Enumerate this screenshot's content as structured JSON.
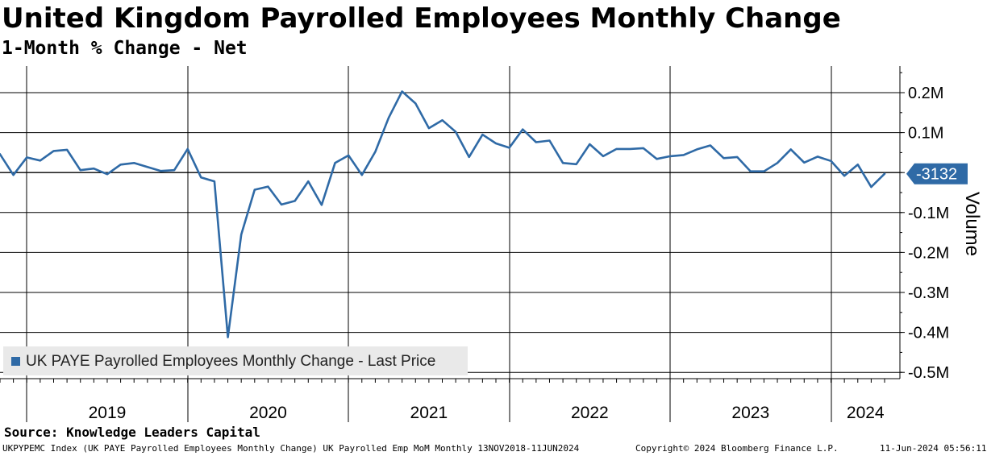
{
  "header": {
    "title": "United Kingdom Payrolled Employees Monthly Change",
    "subtitle": "1-Month % Change - Net"
  },
  "legend": {
    "label": "UK PAYE Payrolled Employees Monthly Change - Last Price"
  },
  "footer": {
    "source": "Source: Knowledge Leaders Capital",
    "ticker": "UKPYPEMC Index (UK PAYE Payrolled Employees Monthly Change) UK Payrolled Emp MoM  Monthly 13NOV2018-11JUN2024",
    "copyright": "Copyright© 2024 Bloomberg Finance L.P.",
    "timestamp": "11-Jun-2024 05:56:11"
  },
  "colors": {
    "line": "#2f6aa6",
    "last_label_bg": "#2f6aa6",
    "grid": "#000000"
  },
  "chart_data": {
    "type": "line",
    "title": "United Kingdom Payrolled Employees Monthly Change",
    "subtitle": "1-Month % Change - Net",
    "ylabel": "Volume",
    "y_axis_position": "right",
    "ylim": [
      -0.5,
      0.2
    ],
    "y_ticks": [
      0.2,
      0.1,
      0.0,
      -0.1,
      -0.2,
      -0.3,
      -0.4,
      -0.5
    ],
    "y_tick_labels": [
      "0.2M",
      "0.1M",
      "",
      "-0.1M",
      "-0.2M",
      "-0.3M",
      "-0.4M",
      "-0.5M"
    ],
    "x_years": [
      "2019",
      "2020",
      "2021",
      "2022",
      "2023",
      "2024"
    ],
    "x_start": "2018-11",
    "grid": true,
    "legend_position": "bottom-left",
    "last_value_label": "-3132",
    "series": [
      {
        "name": "UK PAYE Payrolled Employees Monthly Change - Last Price",
        "x": [
          "2018-11",
          "2018-12",
          "2019-01",
          "2019-02",
          "2019-03",
          "2019-04",
          "2019-05",
          "2019-06",
          "2019-07",
          "2019-08",
          "2019-09",
          "2019-10",
          "2019-11",
          "2019-12",
          "2020-01",
          "2020-02",
          "2020-03",
          "2020-04",
          "2020-05",
          "2020-06",
          "2020-07",
          "2020-08",
          "2020-09",
          "2020-10",
          "2020-11",
          "2020-12",
          "2021-01",
          "2021-02",
          "2021-03",
          "2021-04",
          "2021-05",
          "2021-06",
          "2021-07",
          "2021-08",
          "2021-09",
          "2021-10",
          "2021-11",
          "2021-12",
          "2022-01",
          "2022-02",
          "2022-03",
          "2022-04",
          "2022-05",
          "2022-06",
          "2022-07",
          "2022-08",
          "2022-09",
          "2022-10",
          "2022-11",
          "2022-12",
          "2023-01",
          "2023-02",
          "2023-03",
          "2023-04",
          "2023-05",
          "2023-06",
          "2023-07",
          "2023-08",
          "2023-09",
          "2023-10",
          "2023-11",
          "2023-12",
          "2024-01",
          "2024-02",
          "2024-03",
          "2024-04",
          "2024-05"
        ],
        "values": [
          0.046,
          -0.006,
          0.038,
          0.03,
          0.054,
          0.057,
          0.006,
          0.01,
          -0.004,
          0.02,
          0.024,
          0.014,
          0.004,
          0.006,
          0.059,
          -0.012,
          -0.022,
          -0.412,
          -0.155,
          -0.043,
          -0.035,
          -0.08,
          -0.071,
          -0.022,
          -0.081,
          0.024,
          0.043,
          -0.006,
          0.052,
          0.137,
          0.203,
          0.173,
          0.111,
          0.131,
          0.102,
          0.039,
          0.095,
          0.073,
          0.062,
          0.108,
          0.076,
          0.08,
          0.024,
          0.021,
          0.071,
          0.041,
          0.059,
          0.059,
          0.061,
          0.034,
          0.041,
          0.044,
          0.058,
          0.068,
          0.036,
          0.039,
          0.003,
          0.003,
          0.024,
          0.058,
          0.025,
          0.04,
          0.029,
          -0.008,
          0.02,
          -0.036,
          -0.003
        ]
      }
    ]
  }
}
